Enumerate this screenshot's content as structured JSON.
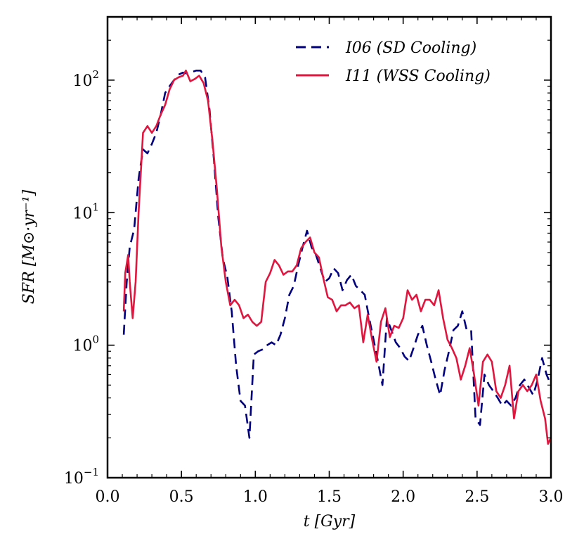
{
  "chart_data": {
    "type": "line",
    "title": "",
    "xlabel": "t [Gyr]",
    "ylabel": "SFR [M⊙·yr⁻¹]",
    "xlim": [
      0.0,
      3.0
    ],
    "ylim": [
      0.1,
      300
    ],
    "yscale": "log",
    "grid": false,
    "legend_position": "top-right",
    "x_ticks": [
      {
        "value": 0.0,
        "label": "0.0"
      },
      {
        "value": 0.5,
        "label": "0.5"
      },
      {
        "value": 1.0,
        "label": "1.0"
      },
      {
        "value": 1.5,
        "label": "1.5"
      },
      {
        "value": 2.0,
        "label": "2.0"
      },
      {
        "value": 2.5,
        "label": "2.5"
      },
      {
        "value": 3.0,
        "label": "3.0"
      }
    ],
    "y_ticks": [
      {
        "value": 0.1,
        "base": "10",
        "exp": "−1"
      },
      {
        "value": 1,
        "base": "10",
        "exp": "0"
      },
      {
        "value": 10,
        "base": "10",
        "exp": "1"
      },
      {
        "value": 100,
        "base": "10",
        "exp": "2"
      }
    ],
    "series": [
      {
        "name": "I06 (SD Cooling)",
        "color": "#00007f",
        "style": "dashed",
        "x": [
          0.11,
          0.13,
          0.15,
          0.18,
          0.21,
          0.24,
          0.27,
          0.3,
          0.33,
          0.36,
          0.39,
          0.42,
          0.45,
          0.48,
          0.51,
          0.54,
          0.57,
          0.6,
          0.63,
          0.66,
          0.69,
          0.72,
          0.75,
          0.78,
          0.81,
          0.84,
          0.87,
          0.9,
          0.93,
          0.96,
          0.99,
          1.02,
          1.05,
          1.08,
          1.11,
          1.14,
          1.17,
          1.2,
          1.23,
          1.26,
          1.29,
          1.32,
          1.35,
          1.38,
          1.41,
          1.44,
          1.47,
          1.5,
          1.53,
          1.56,
          1.59,
          1.62,
          1.65,
          1.68,
          1.71,
          1.74,
          1.77,
          1.8,
          1.83,
          1.86,
          1.89,
          1.92,
          1.95,
          1.98,
          2.01,
          2.04,
          2.07,
          2.1,
          2.13,
          2.16,
          2.19,
          2.22,
          2.25,
          2.28,
          2.31,
          2.34,
          2.37,
          2.4,
          2.43,
          2.46,
          2.49,
          2.52,
          2.55,
          2.58,
          2.61,
          2.64,
          2.67,
          2.7,
          2.73,
          2.76,
          2.79,
          2.82,
          2.85,
          2.88,
          2.91,
          2.94,
          2.97,
          3.0
        ],
        "y": [
          1.2,
          3.0,
          5.5,
          7.5,
          18,
          30,
          28,
          33,
          40,
          55,
          80,
          90,
          100,
          110,
          114,
          112,
          115,
          118,
          118,
          105,
          60,
          25,
          9,
          4.5,
          3.3,
          1.8,
          0.7,
          0.38,
          0.35,
          0.2,
          0.85,
          0.9,
          0.93,
          1.0,
          1.05,
          1.0,
          1.2,
          1.6,
          2.4,
          2.8,
          4.0,
          5.5,
          7.3,
          5.5,
          4.8,
          3.8,
          3.0,
          3.2,
          3.8,
          3.5,
          2.6,
          3.1,
          3.4,
          2.8,
          2.6,
          2.4,
          1.6,
          1.1,
          0.75,
          0.5,
          1.6,
          1.3,
          1.05,
          0.95,
          0.82,
          0.76,
          0.95,
          1.2,
          1.4,
          1.0,
          0.75,
          0.55,
          0.42,
          0.65,
          0.9,
          1.3,
          1.4,
          1.8,
          1.3,
          1.3,
          0.28,
          0.25,
          0.6,
          0.5,
          0.45,
          0.4,
          0.35,
          0.38,
          0.35,
          0.4,
          0.5,
          0.55,
          0.48,
          0.42,
          0.55,
          0.8,
          0.6,
          0.5
        ]
      },
      {
        "name": "I11 (WSS Cooling)",
        "color": "#e0163f",
        "style": "solid",
        "x": [
          0.11,
          0.12,
          0.14,
          0.15,
          0.17,
          0.19,
          0.21,
          0.24,
          0.27,
          0.3,
          0.33,
          0.36,
          0.39,
          0.42,
          0.45,
          0.48,
          0.51,
          0.53,
          0.56,
          0.59,
          0.62,
          0.65,
          0.68,
          0.71,
          0.74,
          0.77,
          0.8,
          0.83,
          0.86,
          0.89,
          0.92,
          0.95,
          0.98,
          1.01,
          1.04,
          1.07,
          1.1,
          1.13,
          1.16,
          1.19,
          1.22,
          1.25,
          1.28,
          1.31,
          1.34,
          1.37,
          1.4,
          1.43,
          1.46,
          1.49,
          1.52,
          1.55,
          1.58,
          1.61,
          1.64,
          1.67,
          1.7,
          1.73,
          1.76,
          1.79,
          1.82,
          1.85,
          1.88,
          1.91,
          1.94,
          1.97,
          2.0,
          2.03,
          2.06,
          2.09,
          2.12,
          2.15,
          2.18,
          2.21,
          2.24,
          2.27,
          2.3,
          2.33,
          2.36,
          2.39,
          2.42,
          2.45,
          2.48,
          2.51,
          2.54,
          2.57,
          2.6,
          2.63,
          2.66,
          2.69,
          2.72,
          2.75,
          2.78,
          2.81,
          2.84,
          2.87,
          2.9,
          2.93,
          2.96,
          2.98,
          3.0
        ],
        "y": [
          1.8,
          3.5,
          4.8,
          3.0,
          1.6,
          3.0,
          10,
          40,
          45,
          40,
          45,
          55,
          65,
          85,
          100,
          105,
          108,
          118,
          98,
          102,
          108,
          95,
          70,
          35,
          15,
          5.5,
          3.0,
          2.0,
          2.2,
          2.0,
          1.6,
          1.7,
          1.5,
          1.4,
          1.5,
          3.0,
          3.5,
          4.4,
          4.0,
          3.4,
          3.6,
          3.6,
          4.0,
          5.4,
          6.0,
          6.5,
          5.0,
          4.6,
          3.2,
          2.3,
          2.2,
          1.8,
          2.0,
          2.0,
          2.1,
          1.9,
          2.0,
          1.05,
          1.7,
          1.1,
          0.75,
          1.5,
          1.9,
          1.15,
          1.4,
          1.35,
          1.6,
          2.6,
          2.2,
          2.4,
          1.8,
          2.2,
          2.2,
          2.0,
          2.6,
          1.6,
          1.1,
          0.95,
          0.8,
          0.55,
          0.7,
          0.95,
          0.6,
          0.35,
          0.75,
          0.85,
          0.75,
          0.45,
          0.4,
          0.5,
          0.7,
          0.28,
          0.45,
          0.5,
          0.45,
          0.5,
          0.6,
          0.38,
          0.28,
          0.18,
          0.2
        ]
      }
    ]
  }
}
